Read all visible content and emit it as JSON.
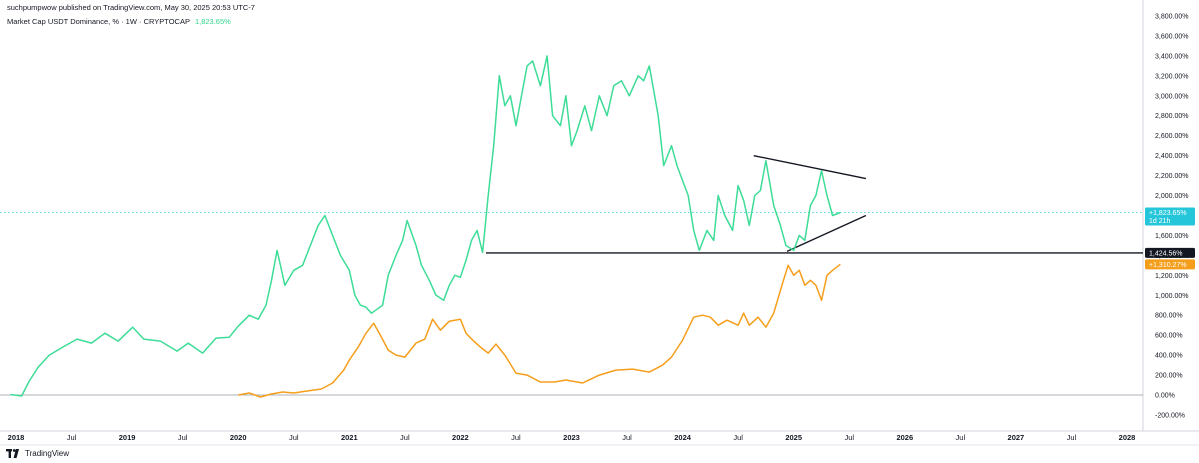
{
  "header": {
    "published": "suchpumpwow published on TradingView.com, May 30, 2025 20:53 UTC-7",
    "legend_text": "Market Cap USDT Dominance, % · 1W · CRYPTOCAP",
    "legend_value": "1,823.65%"
  },
  "footer": {
    "brand": "TradingView"
  },
  "price_labels": {
    "current": "+1,823.65%",
    "current_sub": "1d 21h",
    "horizontal": "1,424.56%",
    "secondary": "+1,310.27%"
  },
  "colors": {
    "main_series": "#3ddc97",
    "secondary_series": "#f59e1b",
    "current_label_bg": "#26c6da",
    "horizontal_label_bg": "#131722",
    "secondary_label_bg": "#f59e1b"
  },
  "chart_data": {
    "type": "line",
    "title": "Market Cap USDT Dominance, % · 1W · CRYPTOCAP",
    "ylim": [
      -300,
      3800
    ],
    "xlim": [
      2018.0,
      2028.35
    ],
    "y_ticks": [
      3800,
      3600,
      3400,
      3200,
      3000,
      2800,
      2600,
      2400,
      2200,
      2000,
      1800,
      1600,
      1400,
      1200,
      1000,
      800,
      600,
      400,
      200,
      0,
      -200
    ],
    "y_tick_labels": [
      "3,800.00%",
      "3,600.00%",
      "3,400.00%",
      "3,200.00%",
      "3,000.00%",
      "2,800.00%",
      "2,600.00%",
      "2,400.00%",
      "2,200.00%",
      "2,000.00%",
      "1,800.00%",
      "1,600.00%",
      "1,400.00%",
      "1,200.00%",
      "1,000.00%",
      "800.00%",
      "600.00%",
      "400.00%",
      "200.00%",
      "0.00%",
      "-200.00%"
    ],
    "x_ticks": [
      {
        "x": 2018.0,
        "label": "2018"
      },
      {
        "x": 2018.5,
        "label": "Jul"
      },
      {
        "x": 2019.0,
        "label": "2019"
      },
      {
        "x": 2019.5,
        "label": "Jul"
      },
      {
        "x": 2020.0,
        "label": "2020"
      },
      {
        "x": 2020.5,
        "label": "Jul"
      },
      {
        "x": 2021.0,
        "label": "2021"
      },
      {
        "x": 2021.5,
        "label": "Jul"
      },
      {
        "x": 2022.0,
        "label": "2022"
      },
      {
        "x": 2022.5,
        "label": "Jul"
      },
      {
        "x": 2023.0,
        "label": "2023"
      },
      {
        "x": 2023.5,
        "label": "Jul"
      },
      {
        "x": 2024.0,
        "label": "2024"
      },
      {
        "x": 2024.5,
        "label": "Jul"
      },
      {
        "x": 2025.0,
        "label": "2025"
      },
      {
        "x": 2025.5,
        "label": "Jul"
      },
      {
        "x": 2026.0,
        "label": "2026"
      },
      {
        "x": 2026.5,
        "label": "Jul"
      },
      {
        "x": 2027.0,
        "label": "2027"
      },
      {
        "x": 2027.5,
        "label": "Jul"
      },
      {
        "x": 2028.0,
        "label": "2028"
      }
    ],
    "grid": false,
    "series": [
      {
        "color": "#3ddc97",
        "x": [
          2017.95,
          2018.05,
          2018.12,
          2018.2,
          2018.3,
          2018.42,
          2018.55,
          2018.68,
          2018.8,
          2018.92,
          2019.05,
          2019.15,
          2019.3,
          2019.45,
          2019.55,
          2019.68,
          2019.8,
          2019.92,
          2020.0,
          2020.1,
          2020.18,
          2020.25,
          2020.3,
          2020.35,
          2020.42,
          2020.5,
          2020.58,
          2020.65,
          2020.72,
          2020.78,
          2020.85,
          2020.92,
          2021.0,
          2021.05,
          2021.1,
          2021.15,
          2021.2,
          2021.25,
          2021.3,
          2021.35,
          2021.42,
          2021.48,
          2021.52,
          2021.6,
          2021.65,
          2021.72,
          2021.78,
          2021.85,
          2021.9,
          2021.95,
          2022.0,
          2022.05,
          2022.1,
          2022.15,
          2022.2,
          2022.25,
          2022.3,
          2022.35,
          2022.4,
          2022.45,
          2022.5,
          2022.55,
          2022.6,
          2022.65,
          2022.72,
          2022.78,
          2022.83,
          2022.9,
          2022.95,
          2023.0,
          2023.05,
          2023.12,
          2023.18,
          2023.25,
          2023.32,
          2023.38,
          2023.45,
          2023.52,
          2023.6,
          2023.65,
          2023.7,
          2023.78,
          2023.83,
          2023.9,
          2023.95,
          2024.0,
          2024.05,
          2024.1,
          2024.15,
          2024.22,
          2024.28,
          2024.32,
          2024.38,
          2024.45,
          2024.5,
          2024.55,
          2024.6,
          2024.65,
          2024.7,
          2024.75,
          2024.82,
          2024.88,
          2024.93,
          2025.0,
          2025.05,
          2025.1,
          2025.15,
          2025.2,
          2025.25,
          2025.3,
          2025.35,
          2025.42
        ],
        "values": [
          5,
          -10,
          140,
          280,
          400,
          480,
          560,
          520,
          620,
          540,
          680,
          560,
          540,
          440,
          520,
          420,
          570,
          580,
          690,
          800,
          760,
          900,
          1150,
          1450,
          1100,
          1250,
          1300,
          1500,
          1700,
          1800,
          1600,
          1400,
          1250,
          1000,
          900,
          880,
          820,
          860,
          900,
          1200,
          1400,
          1550,
          1750,
          1500,
          1300,
          1150,
          1000,
          950,
          1100,
          1200,
          1180,
          1350,
          1550,
          1650,
          1430,
          2000,
          2500,
          3200,
          2900,
          3000,
          2700,
          3000,
          3300,
          3350,
          3100,
          3400,
          2800,
          2700,
          3000,
          2500,
          2650,
          2900,
          2650,
          3000,
          2800,
          3100,
          3150,
          3000,
          3200,
          3150,
          3300,
          2800,
          2300,
          2500,
          2300,
          2150,
          2000,
          1650,
          1450,
          1650,
          1550,
          2000,
          1800,
          1650,
          2100,
          1950,
          1700,
          2000,
          2050,
          2350,
          1900,
          1700,
          1500,
          1450,
          1600,
          1550,
          1900,
          2000,
          2250,
          2000,
          1800,
          1830
        ]
      },
      {
        "color": "#f59e1b",
        "x": [
          2020.0,
          2020.1,
          2020.2,
          2020.3,
          2020.4,
          2020.5,
          2020.62,
          2020.75,
          2020.85,
          2020.95,
          2021.0,
          2021.08,
          2021.15,
          2021.22,
          2021.28,
          2021.35,
          2021.42,
          2021.5,
          2021.6,
          2021.68,
          2021.75,
          2021.82,
          2021.9,
          2022.0,
          2022.05,
          2022.12,
          2022.18,
          2022.25,
          2022.32,
          2022.4,
          2022.5,
          2022.6,
          2022.72,
          2022.85,
          2022.95,
          2023.1,
          2023.25,
          2023.4,
          2023.55,
          2023.7,
          2023.82,
          2023.9,
          2024.0,
          2024.1,
          2024.18,
          2024.25,
          2024.32,
          2024.4,
          2024.5,
          2024.55,
          2024.6,
          2024.68,
          2024.75,
          2024.82,
          2024.88,
          2024.95,
          2025.0,
          2025.05,
          2025.1,
          2025.15,
          2025.2,
          2025.25,
          2025.3,
          2025.35,
          2025.42
        ],
        "values": [
          0,
          20,
          -20,
          10,
          30,
          20,
          40,
          60,
          120,
          250,
          350,
          480,
          620,
          720,
          600,
          450,
          400,
          380,
          520,
          560,
          760,
          650,
          740,
          760,
          620,
          540,
          480,
          420,
          510,
          400,
          220,
          200,
          130,
          130,
          150,
          120,
          200,
          250,
          260,
          230,
          300,
          380,
          550,
          780,
          800,
          780,
          700,
          750,
          700,
          820,
          700,
          780,
          680,
          820,
          1050,
          1300,
          1200,
          1250,
          1100,
          1150,
          1100,
          950,
          1200,
          1250,
          1310
        ]
      }
    ],
    "annotations": [
      {
        "type": "horizontal-ray",
        "from_x": 2022.23,
        "y": 1424.56
      },
      {
        "type": "trendline",
        "x": [
          2024.64,
          2025.65
        ],
        "y": [
          2400,
          2170
        ]
      },
      {
        "type": "trendline",
        "x": [
          2024.94,
          2025.65
        ],
        "y": [
          1440,
          1800
        ]
      }
    ]
  }
}
